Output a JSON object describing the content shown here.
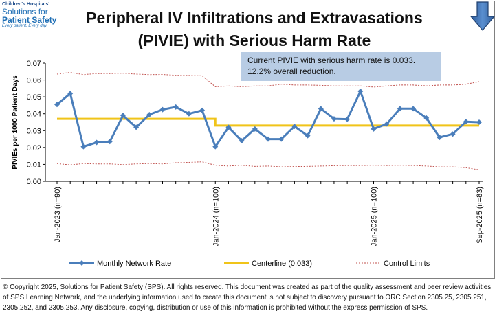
{
  "logo": {
    "line1": "Children's Hospitals'",
    "line2": "Solutions for",
    "line3": "Patient Safety",
    "line4": "Every patient. Every day."
  },
  "title_line1": "Peripheral IV Infiltrations and Extravasations",
  "title_line2": "(PIVIE) with Serious Harm Rate",
  "note": {
    "line1": "Current  PIVIE with serious harm rate is 0.033.",
    "line2": "12.2% overall reduction."
  },
  "arrow_icon": "down-arrow-icon",
  "chart_data": {
    "type": "line",
    "ylabel": "PIVIEs  per 1000 Patient Days",
    "ylim": [
      0,
      0.07
    ],
    "yticks": [
      0.0,
      0.01,
      0.02,
      0.03,
      0.04,
      0.05,
      0.06,
      0.07
    ],
    "grid": false,
    "legend_position": "bottom",
    "x_tick_labels": [
      "Jan-2023 (n=90)",
      "Jan-2024 (n=100)",
      "Jan-2025 (n=100)",
      "Sep-2025 (n=83)"
    ],
    "x_tick_indices": [
      0,
      12,
      24,
      32
    ],
    "series": [
      {
        "name": "Monthly Network Rate",
        "color": "#4a7ebb",
        "values": [
          0.0455,
          0.052,
          0.0205,
          0.023,
          0.0235,
          0.039,
          0.032,
          0.0395,
          0.0425,
          0.044,
          0.04,
          0.042,
          0.0205,
          0.032,
          0.024,
          0.031,
          0.025,
          0.025,
          0.0325,
          0.027,
          0.043,
          0.037,
          0.0368,
          0.0533,
          0.031,
          0.034,
          0.043,
          0.043,
          0.0375,
          0.026,
          0.028,
          0.0353,
          0.035
        ]
      },
      {
        "name": "Centerline (0.033)",
        "color": "#f0c419",
        "values": [
          0.037,
          0.037,
          0.037,
          0.037,
          0.037,
          0.037,
          0.037,
          0.037,
          0.037,
          0.037,
          0.037,
          0.037,
          0.033,
          0.033,
          0.033,
          0.033,
          0.033,
          0.033,
          0.033,
          0.033,
          0.033,
          0.033,
          0.033,
          0.033,
          0.033,
          0.033,
          0.033,
          0.033,
          0.033,
          0.033,
          0.033,
          0.033,
          0.033
        ]
      },
      {
        "name": "Control Limits",
        "color": "#c0504d",
        "upper": [
          0.0635,
          0.0645,
          0.0632,
          0.0638,
          0.0638,
          0.064,
          0.0635,
          0.0632,
          0.0633,
          0.0628,
          0.0627,
          0.0625,
          0.056,
          0.0565,
          0.056,
          0.0565,
          0.0565,
          0.0575,
          0.057,
          0.057,
          0.0568,
          0.0565,
          0.0565,
          0.0565,
          0.0558,
          0.0565,
          0.057,
          0.057,
          0.0565,
          0.057,
          0.057,
          0.0575,
          0.059
        ],
        "lower": [
          0.0105,
          0.0097,
          0.0105,
          0.0103,
          0.0103,
          0.0098,
          0.0103,
          0.0105,
          0.0103,
          0.011,
          0.0112,
          0.0115,
          0.0095,
          0.009,
          0.0095,
          0.0088,
          0.009,
          0.0085,
          0.0087,
          0.0088,
          0.009,
          0.0092,
          0.0093,
          0.0093,
          0.0095,
          0.0093,
          0.0095,
          0.0093,
          0.009,
          0.0085,
          0.0085,
          0.008,
          0.0068
        ]
      }
    ]
  },
  "copyright": "© Copyright 2025, Solutions for Patient Safety (SPS).  All rights reserved.  This document was created as part of the quality assessment and peer review activities of SPS Learning Network, and the underlying information used to create this document is not subject to discovery pursuant to ORC Section 2305.25, 2305.251, 2305.252, and 2305.253. Any disclosure, copying, distribution or use of this information is prohibited without the express permission of SPS."
}
